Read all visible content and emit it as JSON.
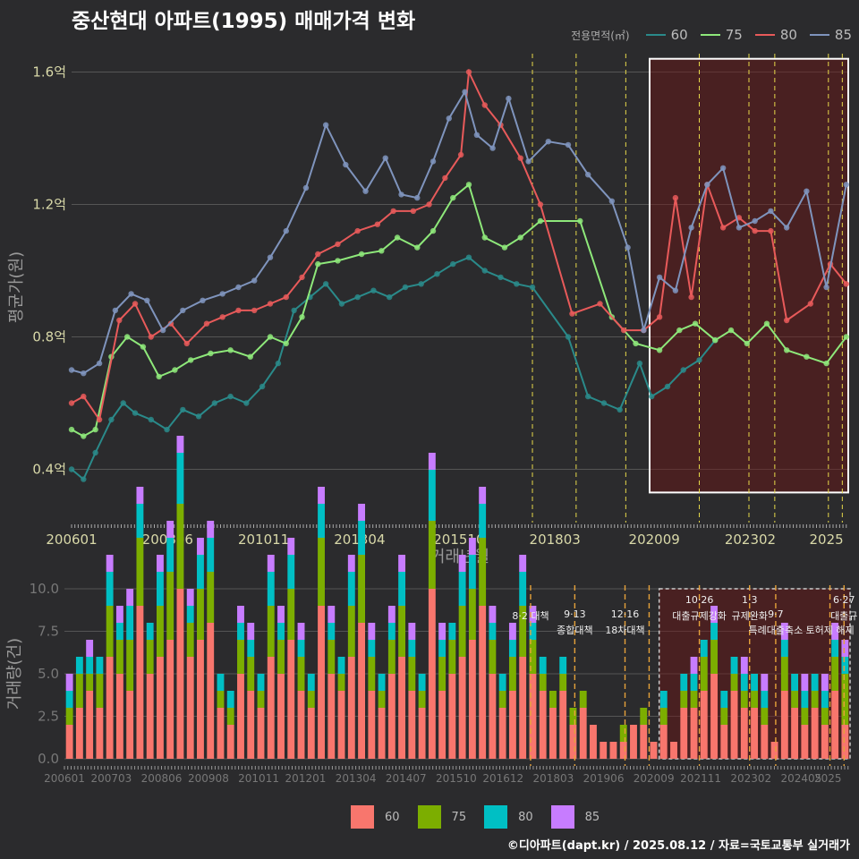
{
  "title": "중산현대 아파트(1995) 매매가격 변화",
  "footer": "©디아파트(dapt.kr) / 2025.08.12 / 자료=국토교통부 실거래가",
  "legend_top": {
    "title": "전용면적(㎡)",
    "items": [
      {
        "label": "60",
        "color": "#2a8a8a"
      },
      {
        "label": "75",
        "color": "#8ee87a"
      },
      {
        "label": "80",
        "color": "#e85a5a"
      },
      {
        "label": "85",
        "color": "#7f94bd"
      }
    ]
  },
  "legend_bottom": {
    "items": [
      {
        "label": "60",
        "color": "#f8766d"
      },
      {
        "label": "75",
        "color": "#7cae00"
      },
      {
        "label": "80",
        "color": "#00bfc4"
      },
      {
        "label": "85",
        "color": "#c77cff"
      }
    ]
  },
  "chart_data": [
    {
      "type": "line",
      "xlabel": "거래년월",
      "ylabel": "평균가(원)",
      "ylim": [
        0.25,
        1.65
      ],
      "xlim": [
        2006.0,
        2025.55
      ],
      "x_ticks": [
        "200601",
        "200806",
        "201011",
        "201304",
        "201510",
        "201803",
        "202009",
        "202302",
        "2025"
      ],
      "y_ticks": [
        "0.4억",
        "0.8억",
        "1.2억",
        "1.6억"
      ],
      "y_tick_values": [
        0.4,
        0.8,
        1.2,
        1.6
      ],
      "grid": true,
      "legend_position": "top-right",
      "highlight_box": {
        "x_range": [
          2020.55,
          2025.55
        ],
        "y_range": [
          0.33,
          1.64
        ]
      },
      "policy_lines": [
        2017.6,
        2018.7,
        2019.95,
        2021.8,
        2023.05,
        2023.7,
        2025.05,
        2025.4
      ],
      "series": [
        {
          "name": "60",
          "color": "#2a8a8a",
          "x": [
            2006.0,
            2006.3,
            2006.6,
            2007.0,
            2007.3,
            2007.6,
            2008.0,
            2008.4,
            2008.8,
            2009.2,
            2009.6,
            2010.0,
            2010.4,
            2010.8,
            2011.2,
            2011.6,
            2012.0,
            2012.4,
            2012.8,
            2013.2,
            2013.6,
            2014.0,
            2014.4,
            2014.8,
            2015.2,
            2015.6,
            2016.0,
            2016.4,
            2016.8,
            2017.2,
            2017.6,
            2018.5,
            2019.0,
            2019.4,
            2019.8,
            2020.3,
            2020.6,
            2021.0,
            2021.4,
            2021.8,
            2022.2
          ],
          "y": [
            0.4,
            0.37,
            0.45,
            0.55,
            0.6,
            0.57,
            0.55,
            0.52,
            0.58,
            0.56,
            0.6,
            0.62,
            0.6,
            0.65,
            0.72,
            0.88,
            0.92,
            0.96,
            0.9,
            0.92,
            0.94,
            0.92,
            0.95,
            0.96,
            0.99,
            1.02,
            1.04,
            1.0,
            0.98,
            0.96,
            0.95,
            0.8,
            0.62,
            0.6,
            0.58,
            0.72,
            0.62,
            0.65,
            0.7,
            0.73,
            0.79
          ]
        },
        {
          "name": "75",
          "color": "#8ee87a",
          "x": [
            2006.0,
            2006.3,
            2006.6,
            2007.0,
            2007.4,
            2007.8,
            2008.2,
            2008.6,
            2009.0,
            2009.5,
            2010.0,
            2010.5,
            2011.0,
            2011.4,
            2011.8,
            2012.2,
            2012.7,
            2013.3,
            2013.8,
            2014.2,
            2014.7,
            2015.1,
            2015.6,
            2016.0,
            2016.4,
            2016.9,
            2017.3,
            2017.8,
            2018.8,
            2019.6,
            2020.2,
            2020.8,
            2021.3,
            2021.7,
            2022.2,
            2022.6,
            2023.0,
            2023.5,
            2024.0,
            2024.5,
            2025.0,
            2025.5
          ],
          "y": [
            0.52,
            0.5,
            0.52,
            0.74,
            0.8,
            0.77,
            0.68,
            0.7,
            0.73,
            0.75,
            0.76,
            0.74,
            0.8,
            0.78,
            0.86,
            1.02,
            1.03,
            1.05,
            1.06,
            1.1,
            1.07,
            1.12,
            1.22,
            1.26,
            1.1,
            1.07,
            1.1,
            1.15,
            1.15,
            0.86,
            0.78,
            0.76,
            0.82,
            0.84,
            0.79,
            0.82,
            0.78,
            0.84,
            0.76,
            0.74,
            0.72,
            0.8
          ]
        },
        {
          "name": "80",
          "color": "#e85a5a",
          "x": [
            2006.0,
            2006.3,
            2006.7,
            2007.2,
            2007.6,
            2008.0,
            2008.5,
            2008.9,
            2009.4,
            2009.8,
            2010.2,
            2010.6,
            2011.0,
            2011.4,
            2011.8,
            2012.2,
            2012.7,
            2013.2,
            2013.7,
            2014.1,
            2014.6,
            2015.0,
            2015.4,
            2015.8,
            2016.0,
            2016.4,
            2016.8,
            2017.3,
            2017.8,
            2018.6,
            2019.3,
            2019.9,
            2020.4,
            2020.8,
            2021.2,
            2021.6,
            2022.0,
            2022.4,
            2022.8,
            2023.2,
            2023.6,
            2024.0,
            2024.6,
            2025.1,
            2025.5
          ],
          "y": [
            0.6,
            0.62,
            0.55,
            0.85,
            0.9,
            0.8,
            0.84,
            0.78,
            0.84,
            0.86,
            0.88,
            0.88,
            0.9,
            0.92,
            0.98,
            1.05,
            1.08,
            1.12,
            1.14,
            1.18,
            1.18,
            1.2,
            1.28,
            1.35,
            1.6,
            1.5,
            1.44,
            1.34,
            1.2,
            0.87,
            0.9,
            0.82,
            0.82,
            0.86,
            1.22,
            0.92,
            1.26,
            1.13,
            1.16,
            1.12,
            1.12,
            0.85,
            0.9,
            1.02,
            0.96
          ]
        },
        {
          "name": "85",
          "color": "#7f94bd",
          "x": [
            2006.0,
            2006.3,
            2006.7,
            2007.1,
            2007.5,
            2007.9,
            2008.3,
            2008.8,
            2009.3,
            2009.8,
            2010.2,
            2010.6,
            2011.0,
            2011.4,
            2011.9,
            2012.4,
            2012.9,
            2013.4,
            2013.9,
            2014.3,
            2014.7,
            2015.1,
            2015.5,
            2015.9,
            2016.2,
            2016.6,
            2017.0,
            2017.5,
            2018.0,
            2018.5,
            2019.0,
            2019.6,
            2020.0,
            2020.4,
            2020.8,
            2021.2,
            2021.6,
            2022.0,
            2022.4,
            2022.8,
            2023.2,
            2023.6,
            2024.0,
            2024.5,
            2025.0,
            2025.5
          ],
          "y": [
            0.7,
            0.69,
            0.72,
            0.88,
            0.93,
            0.91,
            0.82,
            0.88,
            0.91,
            0.93,
            0.95,
            0.97,
            1.04,
            1.12,
            1.25,
            1.44,
            1.32,
            1.24,
            1.34,
            1.23,
            1.22,
            1.33,
            1.46,
            1.54,
            1.41,
            1.37,
            1.52,
            1.33,
            1.39,
            1.38,
            1.29,
            1.21,
            1.07,
            0.82,
            0.98,
            0.94,
            1.13,
            1.26,
            1.31,
            1.13,
            1.15,
            1.18,
            1.13,
            1.24,
            0.95,
            1.26
          ]
        }
      ]
    },
    {
      "type": "bar",
      "ylabel": "거래량(건)",
      "ylim": [
        0,
        10
      ],
      "xlim": [
        2006.0,
        2025.55
      ],
      "y_ticks": [
        "0.0",
        "2.5",
        "5.0",
        "7.5",
        "10.0"
      ],
      "y_tick_values": [
        0,
        2.5,
        5,
        7.5,
        10
      ],
      "x_ticks": [
        "200601",
        "200703",
        "200806",
        "200908",
        "201011",
        "201201",
        "201304",
        "201407",
        "201510",
        "201612",
        "201803",
        "201906",
        "202009",
        "202111",
        "202302",
        "202405",
        "2025"
      ],
      "highlight_box": {
        "x_range": [
          2020.8,
          2025.55
        ],
        "y_range": [
          0,
          10
        ]
      },
      "policy_lines": [
        2017.6,
        2018.7,
        2019.95,
        2020.55,
        2021.8,
        2023.05,
        2023.7,
        2025.05,
        2025.4
      ],
      "annotations": [
        {
          "x": 2017.6,
          "date": "",
          "label": "8·2 대책",
          "row": 1
        },
        {
          "x": 2018.7,
          "date": "9·13",
          "label": "종합대책",
          "row": 2
        },
        {
          "x": 2019.95,
          "date": "12·16",
          "label": "18차대책",
          "row": 2
        },
        {
          "x": 2021.8,
          "date": "10·26",
          "label": "대출규제강화",
          "row": 1
        },
        {
          "x": 2023.05,
          "date": "1·3",
          "label": "규제완화",
          "row": 1
        },
        {
          "x": 2023.7,
          "date": "9·7",
          "label": "특례대출축소",
          "row": 2
        },
        {
          "x": 2025.05,
          "date": "",
          "label": "토허제 해제",
          "row": 2
        },
        {
          "x": 2025.4,
          "date": "6·27",
          "label": "대출규",
          "row": 1
        }
      ],
      "series": [
        {
          "name": "60",
          "color": "#f8766d",
          "values": [
            2,
            3,
            4,
            3,
            6,
            5,
            4,
            9,
            5,
            6,
            7,
            10,
            6,
            7,
            8,
            3,
            2,
            5,
            4,
            3,
            6,
            5,
            7,
            4,
            3,
            9,
            5,
            4,
            6,
            8,
            4,
            3,
            5,
            6,
            4,
            3,
            10,
            4,
            5,
            6,
            7,
            9,
            5,
            3,
            4,
            6,
            5,
            4,
            3,
            4,
            2,
            3,
            2,
            1,
            1,
            1,
            2,
            2,
            1,
            2,
            1,
            3,
            3,
            4,
            5,
            2,
            4,
            3,
            3,
            2,
            1,
            4,
            3,
            2,
            3,
            2,
            4,
            2
          ]
        },
        {
          "name": "75",
          "color": "#7cae00",
          "values": [
            1,
            2,
            1,
            2,
            3,
            2,
            3,
            4,
            2,
            3,
            4,
            5,
            2,
            3,
            3,
            1,
            1,
            2,
            2,
            1,
            3,
            2,
            3,
            2,
            1,
            4,
            2,
            1,
            3,
            4,
            2,
            1,
            2,
            3,
            2,
            1,
            4,
            2,
            2,
            3,
            3,
            4,
            2,
            1,
            2,
            3,
            2,
            1,
            1,
            1,
            1,
            1,
            0,
            0,
            0,
            1,
            0,
            1,
            0,
            1,
            0,
            1,
            1,
            2,
            2,
            1,
            1,
            1,
            1,
            1,
            0,
            2,
            1,
            1,
            1,
            1,
            2,
            3
          ]
        },
        {
          "name": "80",
          "color": "#00bfc4",
          "values": [
            1,
            1,
            1,
            1,
            2,
            1,
            2,
            2,
            1,
            2,
            2,
            3,
            1,
            2,
            2,
            1,
            1,
            1,
            1,
            1,
            2,
            1,
            2,
            1,
            1,
            2,
            1,
            1,
            2,
            2,
            1,
            1,
            1,
            2,
            1,
            1,
            3,
            1,
            1,
            2,
            2,
            2,
            1,
            1,
            1,
            2,
            1,
            1,
            0,
            1,
            0,
            0,
            0,
            0,
            0,
            0,
            0,
            0,
            0,
            1,
            0,
            1,
            1,
            1,
            1,
            1,
            1,
            1,
            1,
            1,
            0,
            1,
            1,
            1,
            1,
            1,
            1,
            1
          ]
        },
        {
          "name": "85",
          "color": "#c77cff",
          "values": [
            1,
            0,
            1,
            0,
            1,
            1,
            1,
            1,
            0,
            1,
            1,
            1,
            1,
            1,
            1,
            0,
            0,
            1,
            1,
            0,
            1,
            1,
            1,
            1,
            0,
            1,
            1,
            0,
            1,
            1,
            1,
            0,
            1,
            1,
            1,
            0,
            1,
            1,
            0,
            1,
            1,
            1,
            1,
            0,
            1,
            1,
            1,
            0,
            0,
            0,
            0,
            0,
            0,
            0,
            0,
            0,
            0,
            0,
            0,
            0,
            0,
            0,
            1,
            0,
            1,
            0,
            0,
            1,
            0,
            1,
            0,
            1,
            0,
            1,
            0,
            1,
            1,
            1
          ]
        }
      ]
    }
  ]
}
